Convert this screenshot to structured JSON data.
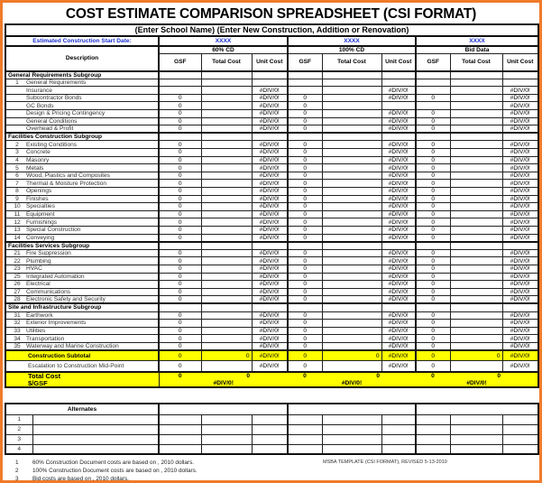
{
  "title": "COST ESTIMATE COMPARISON SPREADSHEET (CSI FORMAT)",
  "subtitle": "(Enter School Name) (Enter New Construction, Addition or Renovation)",
  "start_date_label": "Estimated Construction Start Date:",
  "dates": [
    "XXXX",
    "XXXX",
    "XXXX"
  ],
  "phases": [
    "60% CD",
    "100% CD",
    "Bid Data"
  ],
  "description_header": "Description",
  "col_headers": [
    "GSF",
    "Total Cost",
    "Unit Cost"
  ],
  "rows": [
    {
      "group": "General Requirements Subgroup"
    },
    {
      "num": "1",
      "desc": "General Requirements",
      "cells": [
        "",
        "",
        "",
        "",
        "",
        "",
        "",
        "",
        ""
      ]
    },
    {
      "num": "",
      "desc": "Insurance",
      "cells": [
        "",
        "",
        "#DIV/0!",
        "",
        "",
        "#DIV/0!",
        "",
        "",
        "#DIV/0!"
      ]
    },
    {
      "num": "",
      "desc": "Subcontractor Bonds",
      "cells": [
        "0",
        "",
        "#DIV/0!",
        "0",
        "",
        "#DIV/0!",
        "0",
        "",
        "#DIV/0!"
      ]
    },
    {
      "num": "",
      "desc": "GC Bonds",
      "cells": [
        "0",
        "",
        "#DIV/0!",
        "0",
        "",
        "",
        "",
        "",
        "#DIV/0!"
      ]
    },
    {
      "num": "",
      "desc": "Design & Pricing Contingency",
      "cells": [
        "0",
        "",
        "#DIV/0!",
        "0",
        "",
        "#DIV/0!",
        "0",
        "",
        "#DIV/0!"
      ]
    },
    {
      "num": "",
      "desc": "General Conditions",
      "cells": [
        "0",
        "",
        "#DIV/0!",
        "0",
        "",
        "#DIV/0!",
        "0",
        "",
        "#DIV/0!"
      ]
    },
    {
      "num": "",
      "desc": "Overhead & Profit",
      "cells": [
        "0",
        "",
        "#DIV/0!",
        "0",
        "",
        "#DIV/0!",
        "0",
        "",
        "#DIV/0!"
      ]
    },
    {
      "group": "Facilities Construction Subgroup"
    },
    {
      "num": "2",
      "desc": "Existing Conditions",
      "std": true
    },
    {
      "num": "3",
      "desc": "Concrete",
      "std": true
    },
    {
      "num": "4",
      "desc": "Masonry",
      "std": true
    },
    {
      "num": "5",
      "desc": "Metals",
      "std": true
    },
    {
      "num": "6",
      "desc": "Wood, Plastics and Composites",
      "std": true
    },
    {
      "num": "7",
      "desc": "Thermal & Moisture Protection",
      "std": true
    },
    {
      "num": "8",
      "desc": "Openings",
      "std": true
    },
    {
      "num": "9",
      "desc": "Finishes",
      "std": true
    },
    {
      "num": "10",
      "desc": "Specialties",
      "std": true
    },
    {
      "num": "11",
      "desc": "Equipment",
      "std": true
    },
    {
      "num": "12",
      "desc": "Furnishings",
      "std": true
    },
    {
      "num": "13",
      "desc": "Special Construction",
      "std": true
    },
    {
      "num": "14",
      "desc": "Conveying",
      "std": true
    },
    {
      "group": "Facilities Services Subgroup"
    },
    {
      "num": "21",
      "desc": "Fire Suppression",
      "std": true
    },
    {
      "num": "22",
      "desc": "Plumbing",
      "std": true
    },
    {
      "num": "23",
      "desc": "HVAC",
      "std": true
    },
    {
      "num": "25",
      "desc": "Integrated Automation",
      "std": true
    },
    {
      "num": "26",
      "desc": "Electrical",
      "std": true
    },
    {
      "num": "27",
      "desc": "Communications",
      "std": true
    },
    {
      "num": "28",
      "desc": "Electronic Safety and Security",
      "std": true
    },
    {
      "group": "Site and Infrastructure Subgroup"
    },
    {
      "num": "31",
      "desc": "Earthwork",
      "std": true
    },
    {
      "num": "32",
      "desc": "Exterior Improvements",
      "std": true
    },
    {
      "num": "33",
      "desc": "Utilities",
      "std": true
    },
    {
      "num": "34",
      "desc": "Transportation",
      "std": true
    },
    {
      "num": "35",
      "desc": "Waterway and Marine Construction",
      "std": true
    }
  ],
  "std_cells": [
    "0",
    "",
    "#DIV/0!",
    "0",
    "",
    "#DIV/0!",
    "0",
    "",
    "#DIV/0!"
  ],
  "subtotal": {
    "label": "Construction Subtotal",
    "cells": [
      "0",
      "0",
      "#DIV/0!",
      "0",
      "0",
      "#DIV/0!",
      "0",
      "0",
      "#DIV/0!"
    ]
  },
  "escalation": {
    "label": "Escalation to Construction Mid-Point",
    "cells": [
      "0",
      "",
      "#DIV/0!",
      "0",
      "",
      "#DIV/0!",
      "0",
      "",
      "#DIV/0!"
    ]
  },
  "total_cost": {
    "label": "Total Cost",
    "values": [
      "0",
      "0",
      "0",
      "0",
      "0",
      "0"
    ]
  },
  "per_gsf": {
    "label": "$/GSF",
    "values": [
      "#DIV/0!",
      "#DIV/0!",
      "#DIV/0!"
    ]
  },
  "alternates": {
    "label": "Alternates",
    "rows": [
      "1",
      "2",
      "3",
      "4"
    ]
  },
  "footnotes": [
    {
      "n": "1",
      "text": "60% Construction Document costs are based on   , 2010 dollars."
    },
    {
      "n": "2",
      "text": "100% Construction Document costs are based on   , 2010 dollars."
    },
    {
      "n": "3",
      "text": "Bid costs are based on   , 2010 dollars."
    }
  ],
  "template_note": "MSBA TEMPLATE (CSI FORMAT), REVISED  5-13-2010",
  "colors": {
    "highlight": "#ffff00",
    "date_text": "#1a2fd0",
    "frame": "#f07a2a"
  }
}
